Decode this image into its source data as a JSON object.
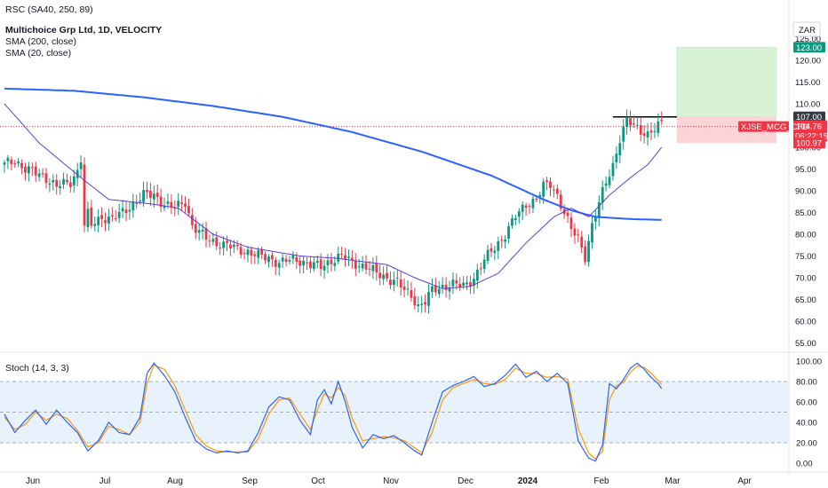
{
  "header": {
    "top_label": "RSC (SA40, 250, 89)",
    "symbol": "Multichoice Grp Ltd, 1D, VELOCITY",
    "indicator_1": "SMA (200, close)",
    "indicator_2": "SMA (20, close)",
    "currency": "ZAR",
    "stoch_label": "Stoch (14, 3, 3)"
  },
  "colors": {
    "up": "#089981",
    "down": "#f23645",
    "sma200": "#2962ff",
    "sma20": "#5b3fd6",
    "stoch_k": "#2962ff",
    "stoch_d": "#ff9800",
    "target_zone": "#d8f2d6",
    "stop_zone": "#fbd4d6"
  },
  "badges": {
    "target": "123.00",
    "entry": "107.00",
    "last_price": "104.76",
    "symbol": "XJSE_MCG_CFD",
    "countdown": "06:22:15",
    "stop": "100.97"
  },
  "chart_data": [
    {
      "type": "candlestick",
      "x_labels": [
        "Jun",
        "Jul",
        "Aug",
        "Sep",
        "Oct",
        "Nov",
        "Dec",
        "2024",
        "Feb",
        "Mar",
        "Apr"
      ],
      "y_ticks": [
        55,
        60,
        65,
        70,
        75,
        80,
        85,
        90,
        95,
        100,
        105,
        110,
        115,
        120,
        125
      ],
      "ylim": [
        55,
        125
      ],
      "anchors": [
        [
          0,
          96
        ],
        [
          3,
          97
        ],
        [
          6,
          95
        ],
        [
          9,
          94
        ],
        [
          12,
          93
        ],
        [
          15,
          91
        ],
        [
          19,
          92
        ],
        [
          22,
          96
        ],
        [
          23,
          87
        ],
        [
          25,
          82
        ],
        [
          28,
          84
        ],
        [
          31,
          83.5
        ],
        [
          34,
          85
        ],
        [
          37,
          87
        ],
        [
          40,
          89
        ],
        [
          43,
          89
        ],
        [
          46,
          87
        ],
        [
          49,
          86
        ],
        [
          52,
          87.5
        ],
        [
          54,
          82
        ],
        [
          58,
          79
        ],
        [
          61,
          78
        ],
        [
          64,
          77.5
        ],
        [
          67,
          76.5
        ],
        [
          70,
          76
        ],
        [
          73,
          75
        ],
        [
          76,
          74.5
        ],
        [
          79,
          73.5
        ],
        [
          82,
          74
        ],
        [
          85,
          74
        ],
        [
          88,
          73
        ],
        [
          91,
          72.5
        ],
        [
          94,
          74
        ],
        [
          97,
          75
        ],
        [
          100,
          73.5
        ],
        [
          104,
          72.5
        ],
        [
          107,
          71
        ],
        [
          110,
          70
        ],
        [
          113,
          69
        ],
        [
          115,
          67
        ],
        [
          117,
          66
        ],
        [
          119,
          63.5
        ],
        [
          121,
          64.5
        ],
        [
          123,
          67
        ],
        [
          126,
          68
        ],
        [
          129,
          68.5
        ],
        [
          132,
          68
        ],
        [
          135,
          70
        ],
        [
          138,
          74
        ],
        [
          141,
          77
        ],
        [
          144,
          80
        ],
        [
          147,
          84
        ],
        [
          150,
          87
        ],
        [
          153,
          88
        ],
        [
          155,
          91
        ],
        [
          157,
          91.5
        ],
        [
          159,
          89
        ],
        [
          161,
          85
        ],
        [
          163,
          81
        ],
        [
          165,
          79
        ],
        [
          167,
          75
        ],
        [
          169,
          82
        ],
        [
          171,
          87
        ],
        [
          173,
          92
        ],
        [
          175,
          96
        ],
        [
          177,
          102
        ],
        [
          179,
          106
        ],
        [
          181,
          105
        ],
        [
          183,
          104
        ],
        [
          185,
          103
        ],
        [
          187,
          104
        ],
        [
          189,
          105.5
        ]
      ],
      "sma200": [
        [
          0,
          113.5
        ],
        [
          20,
          113
        ],
        [
          40,
          111.5
        ],
        [
          60,
          109.5
        ],
        [
          80,
          107
        ],
        [
          100,
          103.5
        ],
        [
          120,
          99
        ],
        [
          140,
          93.5
        ],
        [
          155,
          88
        ],
        [
          163,
          85.5
        ],
        [
          170,
          84
        ],
        [
          180,
          83.5
        ],
        [
          189,
          83.3
        ]
      ],
      "sma20": [
        [
          0,
          110
        ],
        [
          10,
          101
        ],
        [
          22,
          93
        ],
        [
          30,
          88
        ],
        [
          42,
          87
        ],
        [
          50,
          86
        ],
        [
          60,
          80
        ],
        [
          70,
          77
        ],
        [
          85,
          75
        ],
        [
          95,
          74.5
        ],
        [
          110,
          73
        ],
        [
          118,
          70
        ],
        [
          126,
          67.5
        ],
        [
          134,
          68
        ],
        [
          142,
          71
        ],
        [
          150,
          78
        ],
        [
          158,
          84
        ],
        [
          163,
          86
        ],
        [
          168,
          84
        ],
        [
          174,
          89
        ],
        [
          180,
          93
        ],
        [
          185,
          96
        ],
        [
          189,
          100
        ]
      ],
      "horizontal_lines": [
        {
          "label": "resistance",
          "value": 107.0
        },
        {
          "label": "last",
          "value": 104.76
        }
      ],
      "zones": {
        "target": [
          107.0,
          123.0
        ],
        "stop": [
          100.97,
          107.0
        ]
      }
    },
    {
      "type": "line",
      "title": "Stoch (14, 3, 3)",
      "y_ticks": [
        0,
        20,
        40,
        60,
        80,
        100
      ],
      "ylim": [
        -5,
        105
      ],
      "band": [
        20,
        80
      ],
      "k_series": [
        [
          0,
          48
        ],
        [
          3,
          30
        ],
        [
          6,
          42
        ],
        [
          9,
          52
        ],
        [
          12,
          38
        ],
        [
          15,
          52
        ],
        [
          18,
          40
        ],
        [
          21,
          30
        ],
        [
          24,
          12
        ],
        [
          27,
          22
        ],
        [
          30,
          40
        ],
        [
          33,
          30
        ],
        [
          36,
          28
        ],
        [
          39,
          45
        ],
        [
          41,
          88
        ],
        [
          43,
          98
        ],
        [
          46,
          86
        ],
        [
          49,
          70
        ],
        [
          52,
          45
        ],
        [
          55,
          22
        ],
        [
          58,
          14
        ],
        [
          61,
          10
        ],
        [
          64,
          12
        ],
        [
          67,
          10
        ],
        [
          70,
          12
        ],
        [
          73,
          30
        ],
        [
          76,
          55
        ],
        [
          79,
          65
        ],
        [
          82,
          62
        ],
        [
          85,
          42
        ],
        [
          88,
          28
        ],
        [
          90,
          62
        ],
        [
          92,
          72
        ],
        [
          94,
          58
        ],
        [
          96,
          80
        ],
        [
          98,
          60
        ],
        [
          100,
          35
        ],
        [
          103,
          15
        ],
        [
          106,
          28
        ],
        [
          109,
          24
        ],
        [
          112,
          27
        ],
        [
          115,
          20
        ],
        [
          118,
          12
        ],
        [
          120,
          8
        ],
        [
          123,
          40
        ],
        [
          126,
          70
        ],
        [
          129,
          76
        ],
        [
          132,
          80
        ],
        [
          135,
          85
        ],
        [
          138,
          75
        ],
        [
          141,
          78
        ],
        [
          144,
          86
        ],
        [
          147,
          97
        ],
        [
          150,
          84
        ],
        [
          153,
          90
        ],
        [
          156,
          80
        ],
        [
          159,
          88
        ],
        [
          162,
          78
        ],
        [
          165,
          22
        ],
        [
          168,
          5
        ],
        [
          170,
          2
        ],
        [
          172,
          18
        ],
        [
          174,
          78
        ],
        [
          176,
          73
        ],
        [
          178,
          82
        ],
        [
          180,
          93
        ],
        [
          182,
          98
        ],
        [
          184,
          92
        ],
        [
          186,
          84
        ],
        [
          188,
          78
        ],
        [
          189,
          73
        ]
      ],
      "d_series": [
        [
          0,
          45
        ],
        [
          3,
          33
        ],
        [
          6,
          38
        ],
        [
          9,
          50
        ],
        [
          12,
          42
        ],
        [
          15,
          48
        ],
        [
          18,
          44
        ],
        [
          21,
          32
        ],
        [
          24,
          16
        ],
        [
          27,
          20
        ],
        [
          30,
          36
        ],
        [
          33,
          33
        ],
        [
          36,
          28
        ],
        [
          39,
          40
        ],
        [
          41,
          78
        ],
        [
          43,
          96
        ],
        [
          46,
          92
        ],
        [
          49,
          76
        ],
        [
          52,
          52
        ],
        [
          55,
          28
        ],
        [
          58,
          17
        ],
        [
          61,
          12
        ],
        [
          64,
          11
        ],
        [
          67,
          11
        ],
        [
          70,
          11
        ],
        [
          73,
          24
        ],
        [
          76,
          48
        ],
        [
          79,
          62
        ],
        [
          82,
          64
        ],
        [
          85,
          48
        ],
        [
          88,
          33
        ],
        [
          90,
          52
        ],
        [
          92,
          68
        ],
        [
          94,
          64
        ],
        [
          96,
          74
        ],
        [
          98,
          66
        ],
        [
          100,
          44
        ],
        [
          103,
          22
        ],
        [
          106,
          24
        ],
        [
          109,
          26
        ],
        [
          112,
          25
        ],
        [
          115,
          22
        ],
        [
          118,
          15
        ],
        [
          120,
          10
        ],
        [
          123,
          30
        ],
        [
          126,
          62
        ],
        [
          129,
          74
        ],
        [
          132,
          78
        ],
        [
          135,
          82
        ],
        [
          138,
          78
        ],
        [
          141,
          77
        ],
        [
          144,
          82
        ],
        [
          147,
          93
        ],
        [
          150,
          88
        ],
        [
          153,
          88
        ],
        [
          156,
          84
        ],
        [
          159,
          85
        ],
        [
          162,
          82
        ],
        [
          165,
          34
        ],
        [
          168,
          10
        ],
        [
          170,
          4
        ],
        [
          172,
          12
        ],
        [
          174,
          62
        ],
        [
          176,
          76
        ],
        [
          178,
          79
        ],
        [
          180,
          89
        ],
        [
          182,
          95
        ],
        [
          184,
          94
        ],
        [
          186,
          88
        ],
        [
          188,
          81
        ],
        [
          189,
          77
        ]
      ]
    }
  ]
}
